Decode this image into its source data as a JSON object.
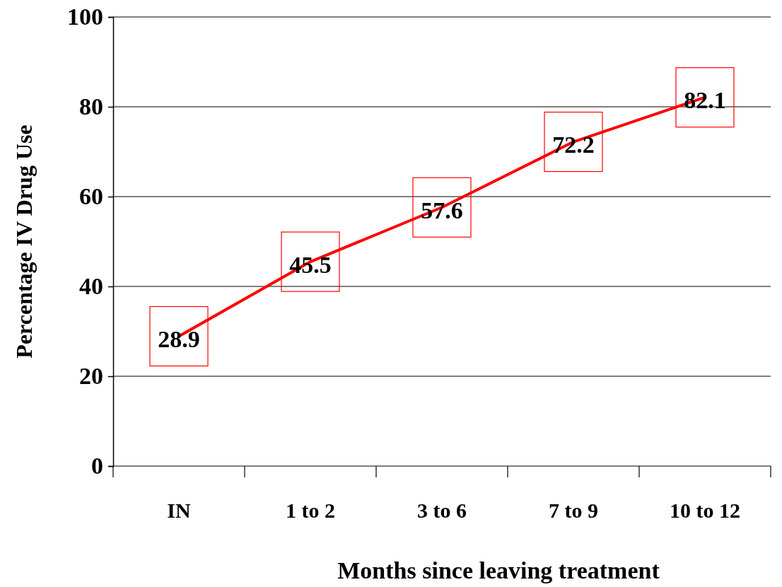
{
  "chart_data": {
    "type": "line",
    "xlabel": "Months since leaving treatment",
    "ylabel": "Percentage IV Drug Use",
    "categories": [
      "IN",
      "1 to 2",
      "3 to 6",
      "7 to 9",
      "10 to 12"
    ],
    "series": [
      {
        "color": "#ff0000",
        "values": [
          28.9,
          45.5,
          57.6,
          72.2,
          82.1
        ]
      }
    ],
    "ylim": [
      0,
      100
    ],
    "yticks": [
      0,
      20,
      40,
      60,
      80,
      100
    ],
    "grid": "y",
    "data_labels": true,
    "marker": "none",
    "line_style": "solid"
  }
}
